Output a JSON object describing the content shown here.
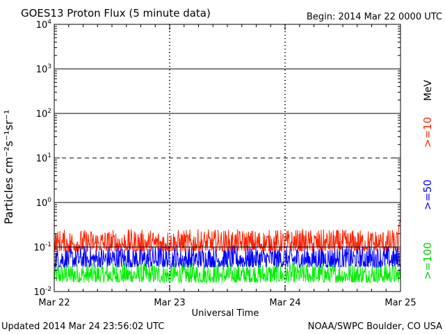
{
  "header": {
    "title": "GOES13 Proton Flux (5 minute data)",
    "begin": "Begin: 2014 Mar 22 0000 UTC"
  },
  "footer": {
    "updated": "Updated 2014 Mar 24 23:56:02 UTC",
    "credit": "NOAA/SWPC Boulder, CO USA"
  },
  "chart_data": {
    "type": "line",
    "title": "GOES13 Proton Flux (5 minute data)",
    "xlabel": "Universal Time",
    "ylabel": "Particles cm⁻²s⁻¹sr⁻¹",
    "y_scale": "log",
    "ylim": [
      0.01,
      10000
    ],
    "y_ticks": [
      {
        "base": "10",
        "exp": "4",
        "value": 10000
      },
      {
        "base": "10",
        "exp": "3",
        "value": 1000
      },
      {
        "base": "10",
        "exp": "2",
        "value": 100
      },
      {
        "base": "10",
        "exp": "1",
        "value": 10
      },
      {
        "base": "10",
        "exp": "0",
        "value": 1
      },
      {
        "base": "10",
        "exp": "-1",
        "value": 0.1
      },
      {
        "base": "10",
        "exp": "-2",
        "value": 0.01
      }
    ],
    "x_ticks": [
      "Mar 22",
      "Mar 23",
      "Mar 24",
      "Mar 25"
    ],
    "xlim": [
      "2014-03-22T00:00",
      "2014-03-25T00:00"
    ],
    "unit_label": "MeV",
    "threshold_lines": [
      {
        "value": 1000,
        "style": "solid"
      },
      {
        "value": 100,
        "style": "solid"
      },
      {
        "value": 10,
        "style": "dashed"
      },
      {
        "value": 1,
        "style": "solid"
      },
      {
        "value": 0.1,
        "style": "solid"
      }
    ],
    "series": [
      {
        "name": ">=10",
        "color": "#ff2200",
        "typical_low": 0.08,
        "typical_high": 0.25,
        "end_value": 0.5
      },
      {
        "name": ">=50",
        "color": "#0000ff",
        "typical_low": 0.035,
        "typical_high": 0.11
      },
      {
        "name": ">=100",
        "color": "#00ee00",
        "typical_low": 0.016,
        "typical_high": 0.045
      }
    ]
  }
}
